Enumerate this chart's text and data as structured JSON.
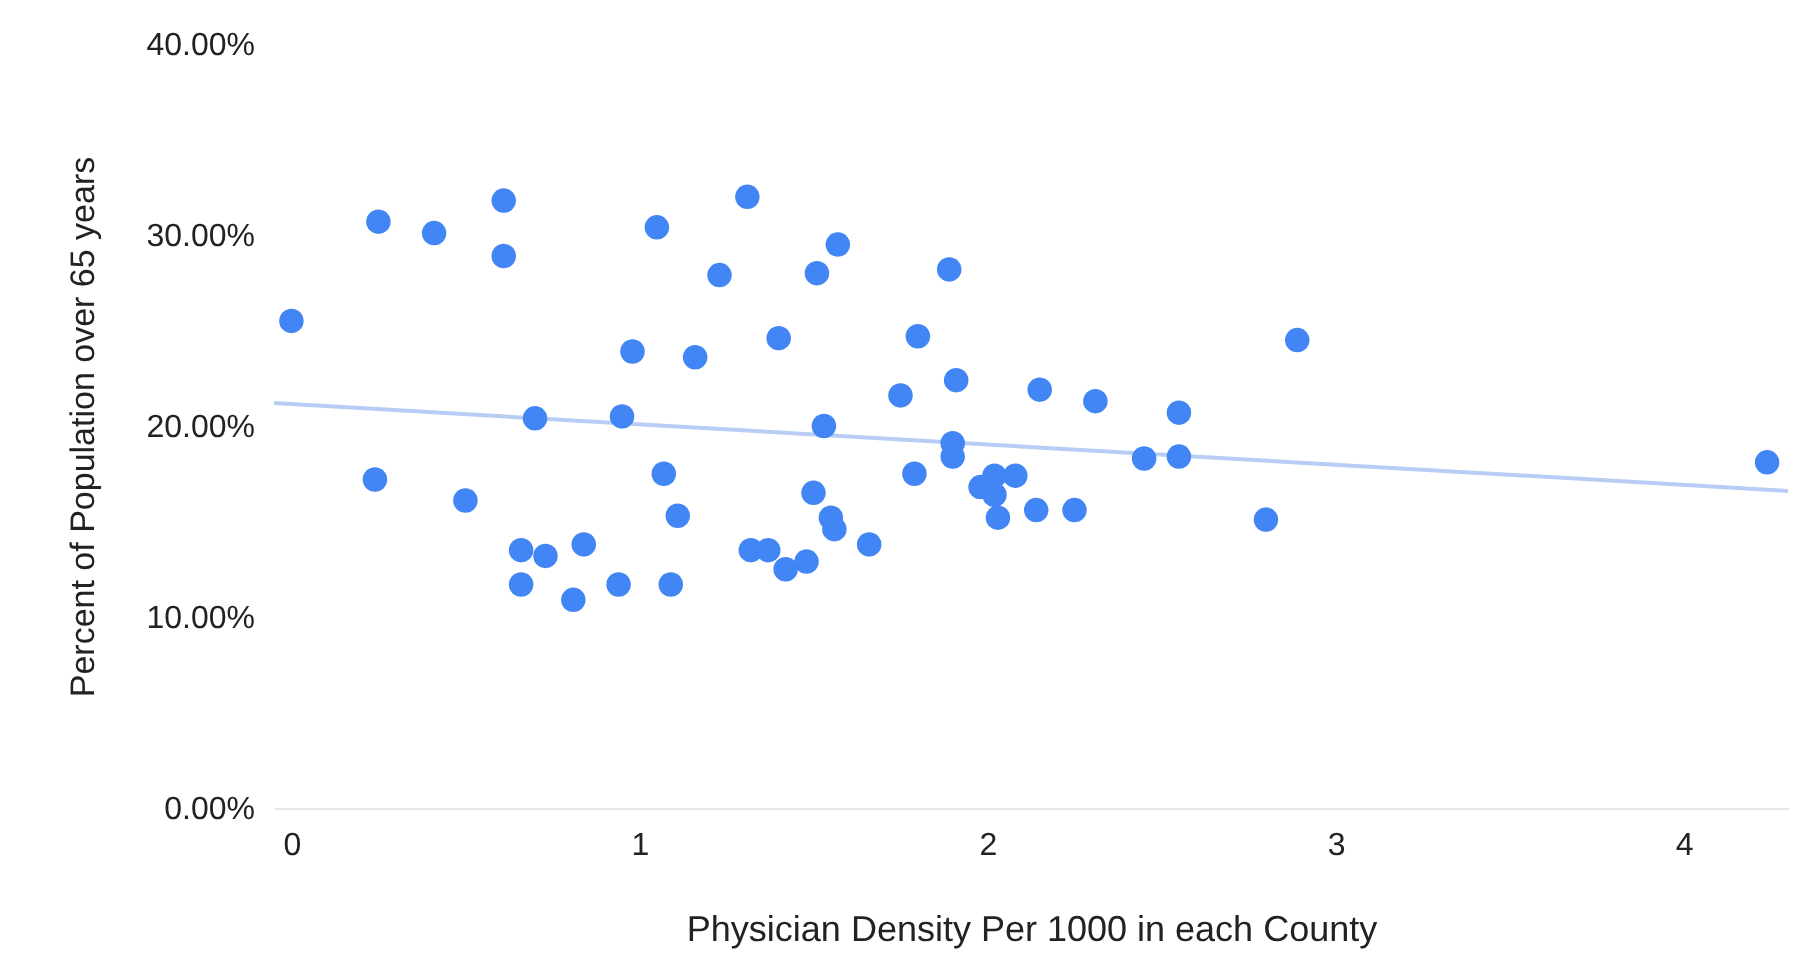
{
  "chart_data": {
    "type": "scatter",
    "xlabel": "Physician Density Per 1000 in each County",
    "ylabel": "Percent of Population over 65 years",
    "xlim": [
      -0.05,
      4.3
    ],
    "xticks": [
      0,
      1,
      2,
      3,
      4
    ],
    "ylim": [
      0,
      40
    ],
    "yticks": [
      {
        "value": 0,
        "label": "0.00%"
      },
      {
        "value": 10,
        "label": "10.00%"
      },
      {
        "value": 20,
        "label": "20.00%"
      },
      {
        "value": 30,
        "label": "30.00%"
      },
      {
        "value": 40,
        "label": "40.00%"
      }
    ],
    "grid": false,
    "series": [
      {
        "color": "#4285f4",
        "marker": "circle",
        "x": [
          0,
          0.25,
          0.24,
          0.41,
          0.5,
          0.61,
          0.61,
          0.66,
          0.66,
          0.7,
          0.73,
          0.84,
          0.81,
          0.94,
          0.95,
          0.98,
          1.05,
          1.07,
          1.11,
          1.09,
          1.16,
          1.23,
          1.31,
          1.32,
          1.37,
          1.4,
          1.42,
          1.48,
          1.51,
          1.53,
          1.5,
          1.55,
          1.56,
          1.57,
          1.66,
          1.75,
          1.8,
          1.79,
          1.89,
          1.91,
          1.9,
          1.9,
          1.98,
          2.02,
          2.02,
          2.03,
          2.08,
          2.14,
          2.15,
          2.25,
          2.31,
          2.45,
          2.55,
          2.55,
          2.8,
          2.89,
          4.24
        ],
        "values": [
          25.5,
          30.7,
          17.2,
          30.1,
          16.1,
          31.8,
          28.9,
          13.5,
          11.7,
          20.4,
          13.2,
          13.8,
          10.9,
          11.7,
          20.5,
          23.9,
          30.4,
          17.5,
          15.3,
          11.7,
          23.6,
          27.9,
          32.0,
          13.5,
          13.5,
          24.6,
          12.5,
          12.9,
          28.0,
          20.0,
          16.5,
          15.2,
          14.6,
          29.5,
          13.8,
          21.6,
          24.7,
          17.5,
          28.2,
          22.4,
          19.1,
          18.4,
          16.8,
          17.4,
          16.4,
          15.2,
          17.4,
          15.6,
          21.9,
          15.6,
          21.3,
          18.3,
          20.7,
          18.4,
          15.1,
          24.5,
          18.1
        ]
      },
      {
        "type": "line",
        "marker": "none",
        "color": "#b7cdf5",
        "x": [
          -0.05,
          4.3
        ],
        "values": [
          21.2,
          16.6
        ]
      }
    ]
  }
}
